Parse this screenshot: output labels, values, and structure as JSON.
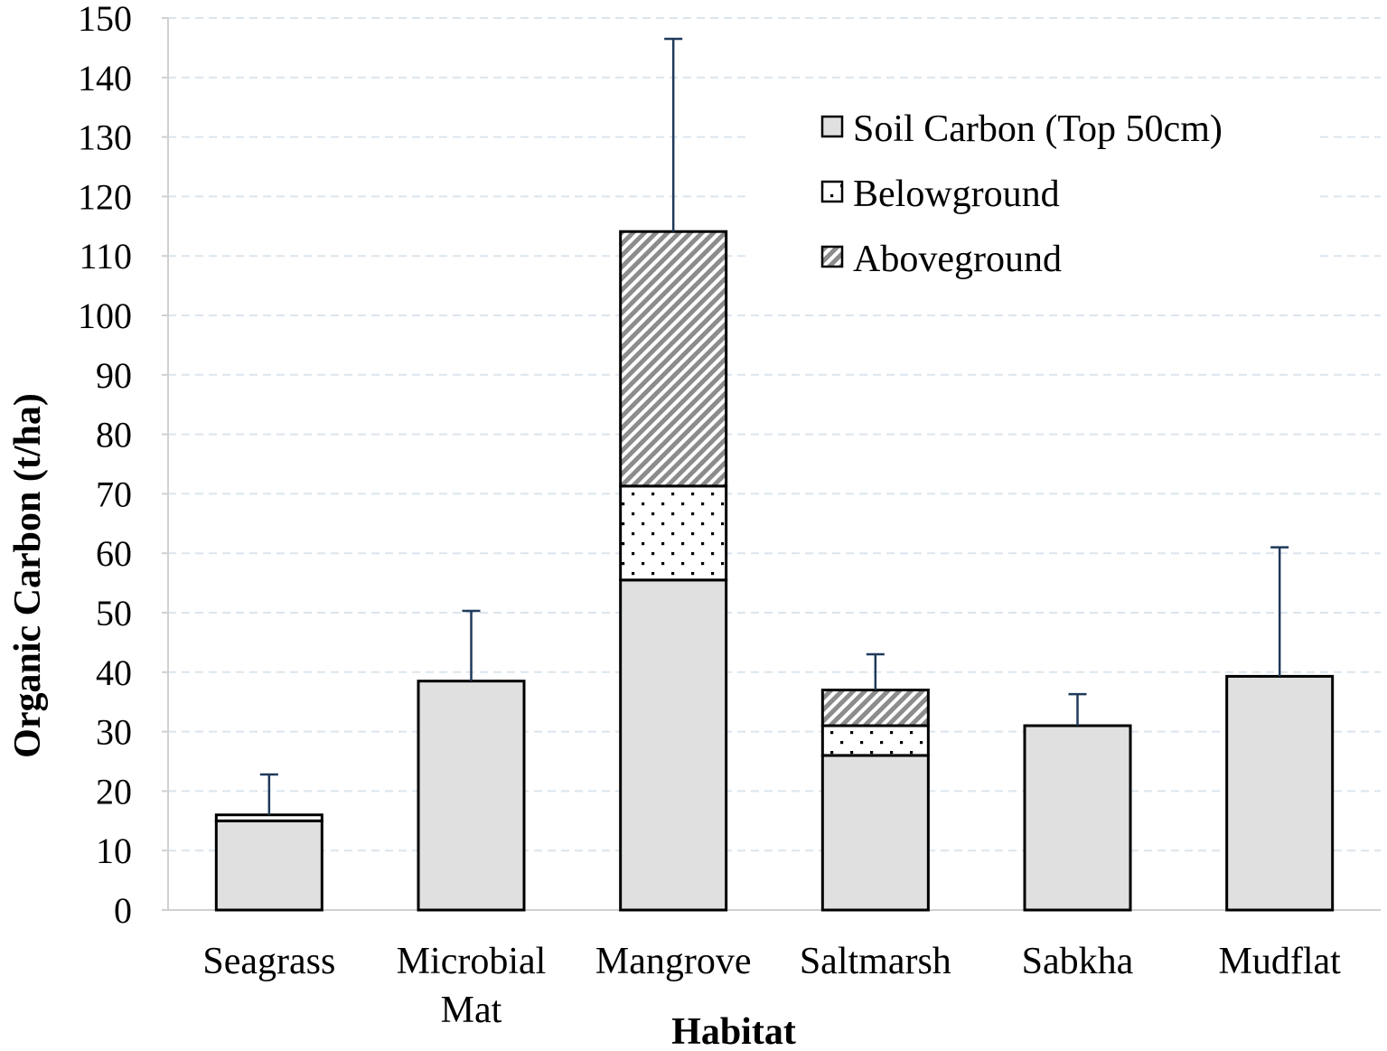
{
  "chart_data": {
    "type": "bar",
    "stacked": true,
    "title": "",
    "xlabel": "Habitat",
    "ylabel": "Organic Carbon (t/ha)",
    "ylim": [
      0,
      150
    ],
    "yticks": [
      0,
      10,
      20,
      30,
      40,
      50,
      60,
      70,
      80,
      90,
      100,
      110,
      120,
      130,
      140,
      150
    ],
    "grid": true,
    "legend_position": "top-right",
    "categories": [
      {
        "lines": [
          "Seagrass"
        ]
      },
      {
        "lines": [
          "Microbial",
          "Mat"
        ]
      },
      {
        "lines": [
          "Mangrove"
        ]
      },
      {
        "lines": [
          "Saltmarsh"
        ]
      },
      {
        "lines": [
          "Sabkha"
        ]
      },
      {
        "lines": [
          "Mudflat"
        ]
      }
    ],
    "series": [
      {
        "name": "Soil Carbon (Top 50cm)",
        "pattern": "solid",
        "color": "#e0e0e0",
        "values": [
          15,
          38.5,
          55.5,
          26,
          31,
          39.3
        ]
      },
      {
        "name": "Belowground",
        "pattern": "dots",
        "color": "#ffffff",
        "values": [
          1,
          0,
          15.8,
          5,
          0,
          0
        ]
      },
      {
        "name": "Aboveground",
        "pattern": "hatch",
        "color": "#9a9a9a",
        "values": [
          0,
          0,
          42.8,
          6,
          0,
          0
        ]
      }
    ],
    "error_bar_top": [
      22.8,
      50.3,
      146.5,
      43,
      36.3,
      61
    ],
    "legend_order": [
      0,
      1,
      2
    ],
    "colors": {
      "axis": "#d0d0d0",
      "grid": "#dbe5ee",
      "error_bar": "#1f3a5a",
      "bar_outline": "#000000"
    }
  }
}
